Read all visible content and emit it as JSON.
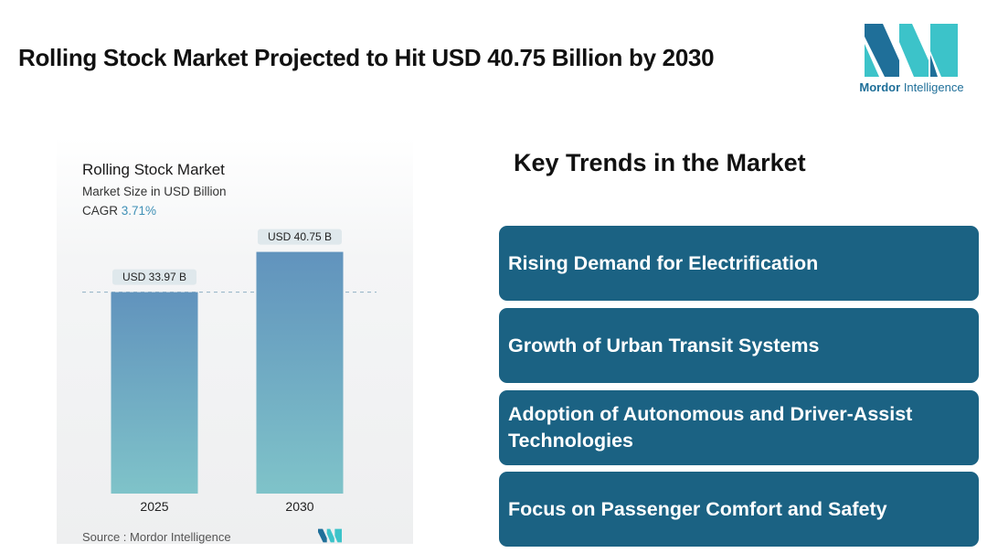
{
  "header": {
    "title": "Rolling Stock Market Projected to Hit USD 40.75 Billion by 2030"
  },
  "logo": {
    "name_bold": "Mordor",
    "name_light": "Intelligence",
    "colors": {
      "dark": "#1f6f99",
      "light": "#3cc3c9"
    }
  },
  "chart_data": {
    "type": "bar",
    "title": "Rolling Stock Market",
    "subtitle": "Market Size in USD Billion",
    "cagr_label": "CAGR",
    "cagr_value": "3.71%",
    "categories": [
      "2025",
      "2030"
    ],
    "values": [
      33.97,
      40.75
    ],
    "data_labels": [
      "USD 33.97 B",
      "USD 40.75 B"
    ],
    "ylim": [
      0,
      45
    ],
    "xlabel": "",
    "ylabel": "",
    "grid": false,
    "reference_line": "dashed line at 2025 value",
    "bar_gradient": {
      "top": "#6193bd",
      "bottom": "#7fc3c9"
    },
    "source_text": "Source :  Mordor Intelligence"
  },
  "trends": {
    "title": "Key Trends in the Market",
    "items": [
      "Rising Demand for Electrification",
      "Growth of Urban Transit Systems",
      "Adoption of Autonomous and Driver-Assist Technologies",
      "Focus on Passenger Comfort and Safety"
    ],
    "box_color": "#1b6283"
  }
}
